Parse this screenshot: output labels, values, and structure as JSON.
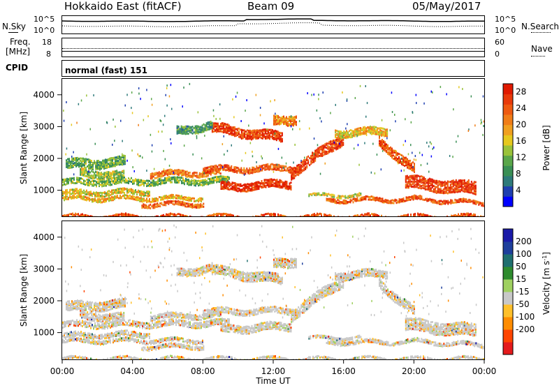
{
  "header": {
    "station": "Hokkaido East (fitACF)",
    "beam": "Beam 09",
    "date": "05/May/2017"
  },
  "top_panels": {
    "nsky_label": "N.Sky",
    "nsearch_label": "N.Search",
    "noise_ticks": [
      "10^5",
      "10^0"
    ],
    "freq_label": "Freq.",
    "freq_unit": "[MHz]",
    "freq_ticks": [
      "18",
      "8"
    ],
    "nave_label": "Nave",
    "nave_ticks": [
      "60",
      "0"
    ],
    "cpid_label": "CPID",
    "cpid_value": "normal (fast) 151"
  },
  "colors": {
    "power": [
      "#0000ff",
      "#1f3fb0",
      "#2e7a7a",
      "#3a8f55",
      "#5aa64a",
      "#9ac23a",
      "#e6c81e",
      "#f0a020",
      "#f07d18",
      "#ee5a10",
      "#e83a0a",
      "#e01a00"
    ],
    "velocity": [
      "#e41a1c",
      "#ff4500",
      "#ff8c00",
      "#ffc02a",
      "#c8c8c8",
      "#9fd060",
      "#2e8b2e",
      "#1f6f6f",
      "#1e3f9c",
      "#1a1aa8"
    ]
  },
  "chart_data": [
    {
      "type": "heatmap",
      "name_on_chart": "",
      "xlabel": "Time UT",
      "ylabel": "Slant Range [km]",
      "xlim": [
        "00:00",
        "24:00"
      ],
      "ylim": [
        180,
        4500
      ],
      "x_ticks": [
        "00:00",
        "04:00",
        "08:00",
        "12:00",
        "16:00",
        "20:00",
        "00:00"
      ],
      "y_ticks": [
        1000,
        2000,
        3000,
        4000
      ],
      "colorbar_label": "Power [dB]",
      "colorbar_ticks": [
        4,
        8,
        12,
        16,
        20,
        24,
        28
      ],
      "colorbar_range": [
        0,
        30
      ]
    },
    {
      "type": "heatmap",
      "xlabel": "Time UT",
      "ylabel": "Slant Range [km]",
      "xlim": [
        "00:00",
        "24:00"
      ],
      "ylim": [
        180,
        4500
      ],
      "x_ticks": [
        "00:00",
        "04:00",
        "08:00",
        "12:00",
        "16:00",
        "20:00",
        "00:00"
      ],
      "y_ticks": [
        1000,
        2000,
        3000,
        4000
      ],
      "colorbar_label": "Velocity [m s-1]",
      "colorbar_ticks": [
        "200",
        "100",
        "50",
        "15",
        "-15",
        "-50",
        "-100",
        "-200"
      ]
    }
  ],
  "x_axis": {
    "label": "Time UT",
    "ticks": [
      "00:00",
      "04:00",
      "08:00",
      "12:00",
      "16:00",
      "20:00",
      "00:00"
    ]
  }
}
